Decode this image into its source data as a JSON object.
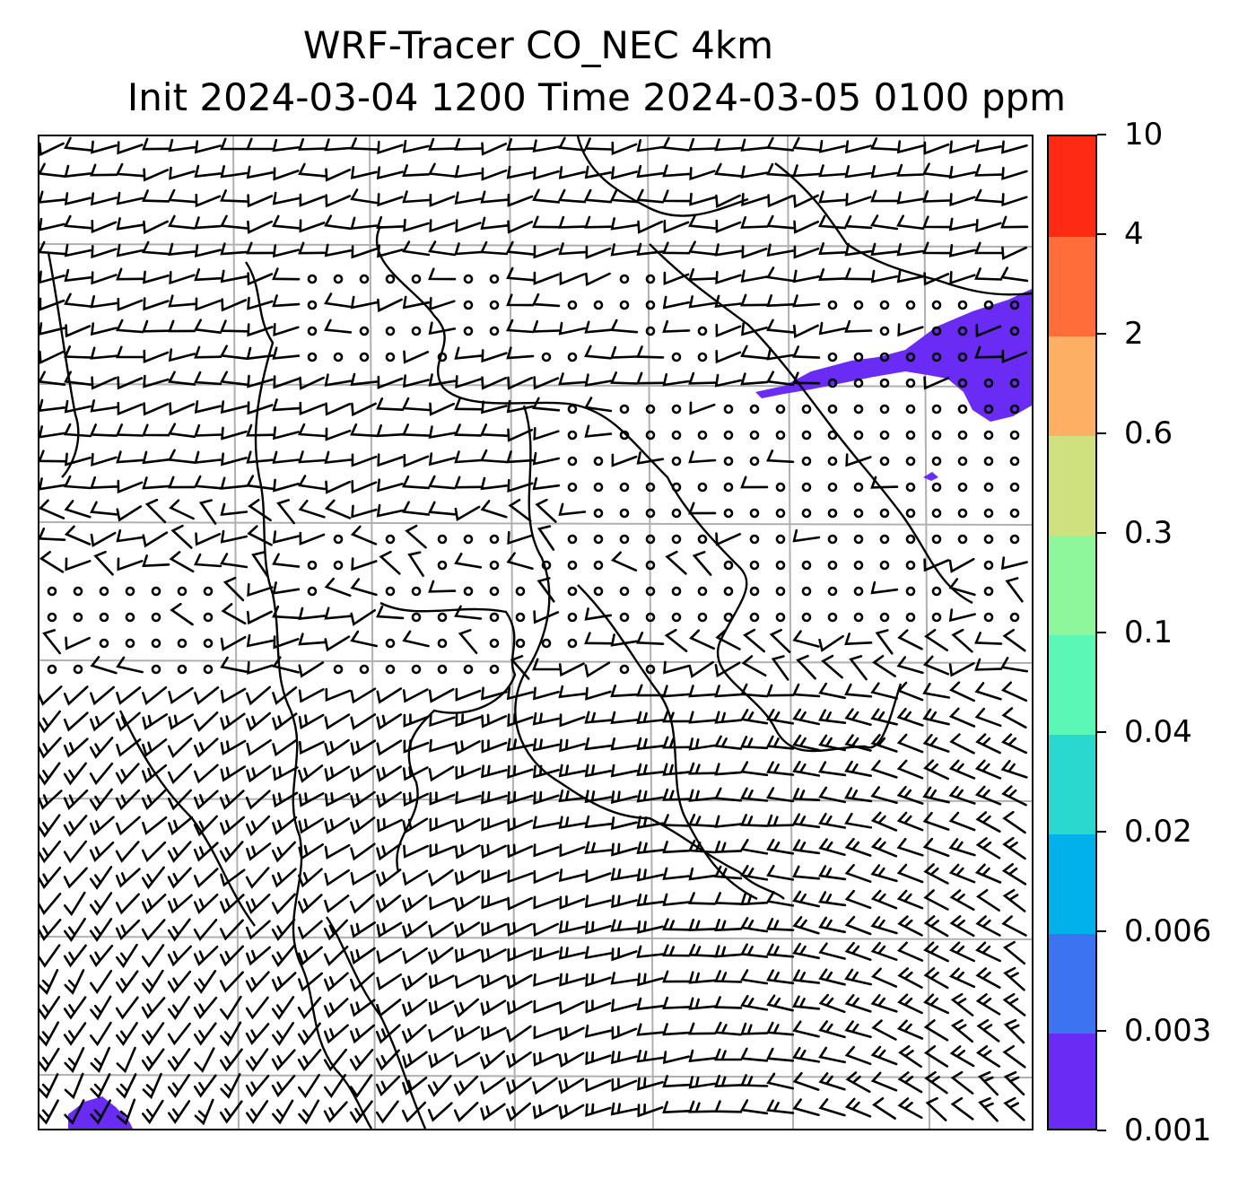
{
  "header": {
    "title_line1": "WRF-Tracer CO_NEC 4km",
    "title_line2": "Init 2024-03-04 1200 Time 2024-03-05 0100 ppm"
  },
  "colorbar": {
    "levels": [
      {
        "label": "0.001",
        "color": "#6a2bf5"
      },
      {
        "label": "0.003",
        "color": "#3b73f0"
      },
      {
        "label": "0.006",
        "color": "#00b1ea"
      },
      {
        "label": "0.02",
        "color": "#2ad8cf"
      },
      {
        "label": "0.04",
        "color": "#5bf7b7"
      },
      {
        "label": "0.1",
        "color": "#8ef79b"
      },
      {
        "label": "0.3",
        "color": "#cfe07e"
      },
      {
        "label": "0.6",
        "color": "#fdaf63"
      },
      {
        "label": "2",
        "color": "#ff6e3a"
      },
      {
        "label": "4",
        "color": "#ff2a13"
      },
      {
        "label": "10",
        "color": null
      }
    ]
  },
  "map": {
    "tracer_color": "#6a2bf5",
    "gridline_color": "#b0b0b0",
    "barb_color": "#000000"
  }
}
